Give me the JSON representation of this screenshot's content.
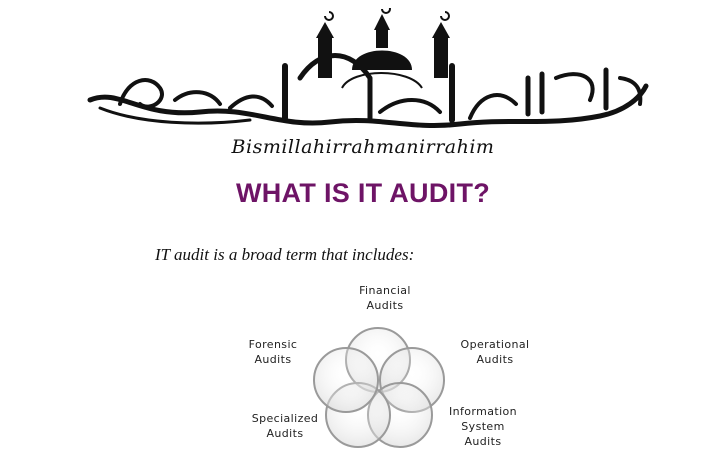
{
  "header": {
    "transliteration": "Bismillahirrahmanirrahim"
  },
  "title": "WHAT IS IT AUDIT?",
  "intro": "IT audit is a broad term that includes:",
  "diagram": {
    "items": [
      {
        "line1": "Financial",
        "line2": "Audits"
      },
      {
        "line1": "Operational",
        "line2": "Audits"
      },
      {
        "line1": "Information",
        "line2": "System",
        "line3": "Audits"
      },
      {
        "line1": "Specialized",
        "line2": "Audits"
      },
      {
        "line1": "Forensic",
        "line2": "Audits"
      }
    ]
  }
}
